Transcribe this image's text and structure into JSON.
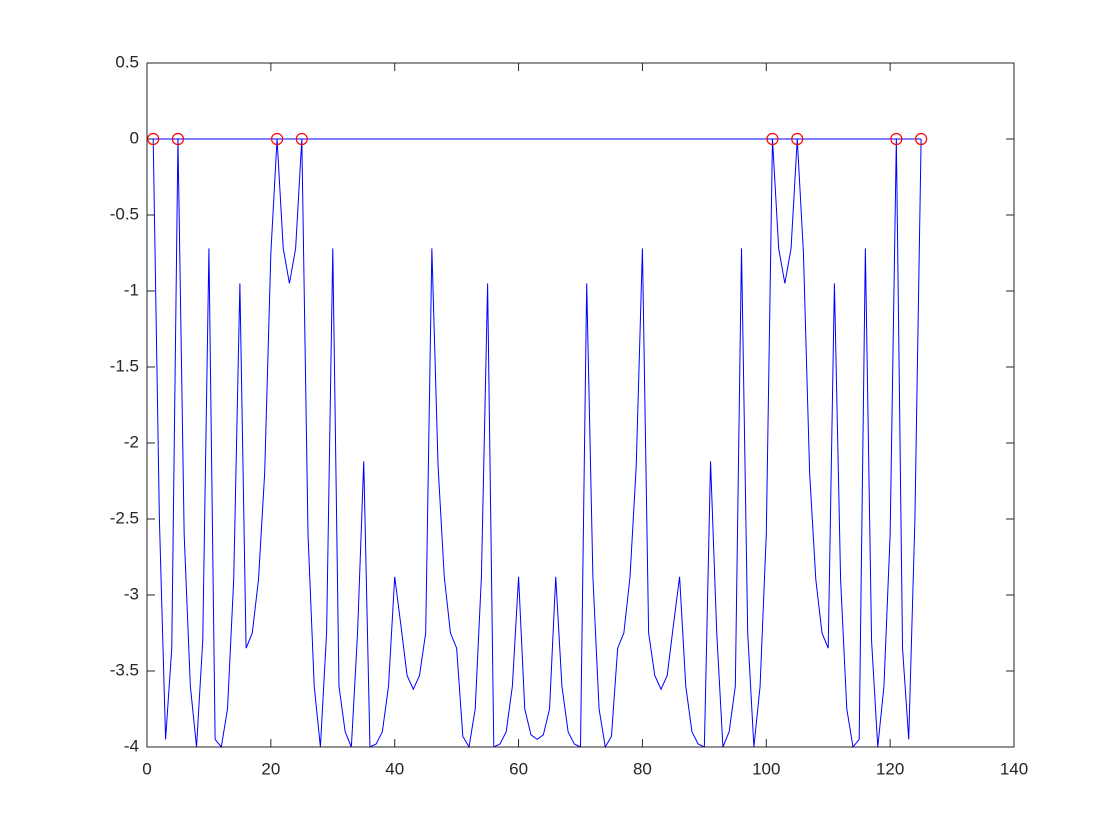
{
  "chart_data": {
    "type": "line",
    "xlim": [
      0,
      140
    ],
    "xticks": [
      0,
      20,
      40,
      60,
      80,
      100,
      120,
      140
    ],
    "ylim": [
      -4,
      0.5
    ],
    "yticks": [
      -4,
      -3.5,
      -3,
      -2.5,
      -2,
      -1.5,
      -1,
      -0.5,
      0,
      0.5
    ],
    "series": [
      {
        "color": "#0000ff",
        "x": [
          1,
          2,
          3,
          4,
          5,
          6,
          7,
          8,
          9,
          10,
          11,
          12,
          13,
          14,
          15,
          16,
          17,
          18,
          19,
          20,
          21,
          22,
          23,
          24,
          25,
          26,
          27,
          28,
          29,
          30,
          31,
          32,
          33,
          34,
          35,
          36,
          37,
          38,
          39,
          40,
          41,
          42,
          43,
          44,
          45,
          46,
          47,
          48,
          49,
          50,
          51,
          52,
          53,
          54,
          55,
          56,
          57,
          58,
          59,
          60,
          61,
          62,
          63,
          64,
          65,
          66,
          67,
          68,
          69,
          70,
          71,
          72,
          73,
          74,
          75,
          76,
          77,
          78,
          79,
          80,
          81,
          82,
          83,
          84,
          85,
          86,
          87,
          88,
          89,
          90,
          91,
          92,
          93,
          94,
          95,
          96,
          97,
          98,
          99,
          100,
          101,
          102,
          103,
          104,
          105,
          106,
          107,
          108,
          109,
          110,
          111,
          112,
          113,
          114,
          115,
          116,
          117,
          118,
          119,
          120,
          121,
          122,
          123,
          124,
          125
        ],
        "values": [
          0,
          -2.5,
          -3.95,
          -3.35,
          0,
          -2.6,
          -3.6,
          -4,
          -3.3,
          -0.72,
          -3.95,
          -4,
          -3.75,
          -2.9,
          -0.95,
          -3.35,
          -3.25,
          -2.9,
          -2.2,
          -0.75,
          0,
          -0.72,
          -0.95,
          -0.72,
          0,
          -2.6,
          -3.6,
          -4,
          -3.25,
          -0.72,
          -3.6,
          -3.9,
          -4,
          -3.25,
          -2.12,
          -4,
          -3.98,
          -3.9,
          -3.6,
          -2.88,
          -3.2,
          -3.53,
          -3.62,
          -3.53,
          -3.25,
          -0.72,
          -2.15,
          -2.88,
          -3.25,
          -3.35,
          -3.93,
          -4,
          -3.75,
          -2.88,
          -0.95,
          -4,
          -3.98,
          -3.9,
          -3.6,
          -2.88,
          -3.75,
          -3.92,
          -3.95,
          -3.92,
          -3.75,
          -2.88,
          -3.6,
          -3.9,
          -3.98,
          -4,
          -0.95,
          -2.88,
          -3.75,
          -4,
          -3.93,
          -3.35,
          -3.25,
          -2.88,
          -2.15,
          -0.72,
          -3.25,
          -3.53,
          -3.62,
          -3.53,
          -3.2,
          -2.88,
          -3.6,
          -3.9,
          -3.98,
          -4,
          -2.12,
          -3.25,
          -4,
          -3.9,
          -3.6,
          -0.72,
          -3.25,
          -4,
          -3.6,
          -2.6,
          0,
          -0.72,
          -0.95,
          -0.72,
          0,
          -0.75,
          -2.2,
          -2.9,
          -3.25,
          -3.35,
          -0.95,
          -2.9,
          -3.75,
          -4,
          -3.95,
          -0.72,
          -3.3,
          -4,
          -3.6,
          -2.6,
          0,
          -3.35,
          -3.95,
          -2.5,
          0
        ]
      },
      {
        "color": "#0000ff",
        "x": [
          1,
          125
        ],
        "values": [
          0,
          0
        ]
      },
      {
        "color": "#ff0000",
        "marker": "circle",
        "line": false,
        "x": [
          1,
          5,
          21,
          25,
          101,
          105,
          121,
          125
        ],
        "values": [
          0,
          0,
          0,
          0,
          0,
          0,
          0,
          0
        ]
      }
    ]
  }
}
